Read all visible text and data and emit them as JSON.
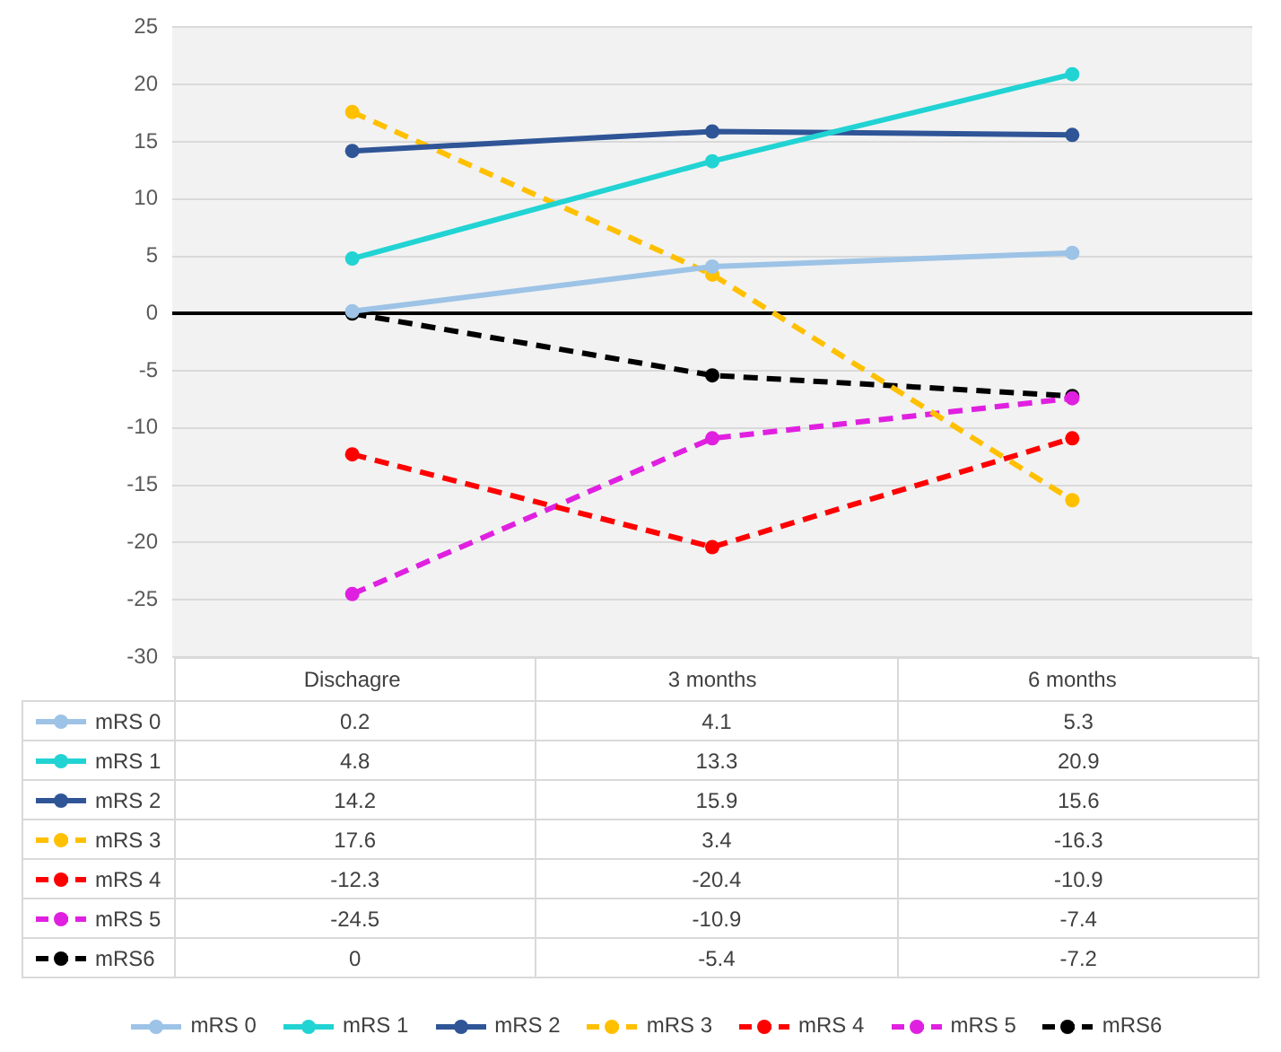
{
  "chart_data": {
    "type": "line",
    "categories": [
      "Dischagre",
      "3 months",
      "6 months"
    ],
    "ylim": [
      -30,
      25
    ],
    "yticks": [
      -30,
      -25,
      -20,
      -15,
      -10,
      -5,
      0,
      5,
      10,
      15,
      20,
      25
    ],
    "grid": "y",
    "legend": "bottom",
    "marker": "circle",
    "data_labels": true,
    "series": [
      {
        "name": "mRS 0",
        "color": "#9dc3e6",
        "line_style": "solid",
        "values": [
          0.2,
          4.1,
          5.3
        ]
      },
      {
        "name": "mRS 1",
        "color": "#22d3d3",
        "line_style": "solid",
        "values": [
          4.8,
          13.3,
          20.9
        ]
      },
      {
        "name": "mRS 2",
        "color": "#2f5597",
        "line_style": "solid",
        "values": [
          14.2,
          15.9,
          15.6
        ]
      },
      {
        "name": "mRS 3",
        "color": "#ffc000",
        "line_style": "dashed",
        "values": [
          17.6,
          3.4,
          -16.3
        ]
      },
      {
        "name": "mRS 4",
        "color": "#ff0000",
        "line_style": "dashed",
        "values": [
          -12.3,
          -20.4,
          -10.9
        ]
      },
      {
        "name": "mRS 5",
        "color": "#e020e0",
        "line_style": "dashed",
        "values": [
          -24.5,
          -10.9,
          -7.4
        ]
      },
      {
        "name": "mRS6",
        "color": "#000000",
        "line_style": "dashed",
        "values": [
          0,
          -5.4,
          -7.2
        ]
      }
    ]
  }
}
